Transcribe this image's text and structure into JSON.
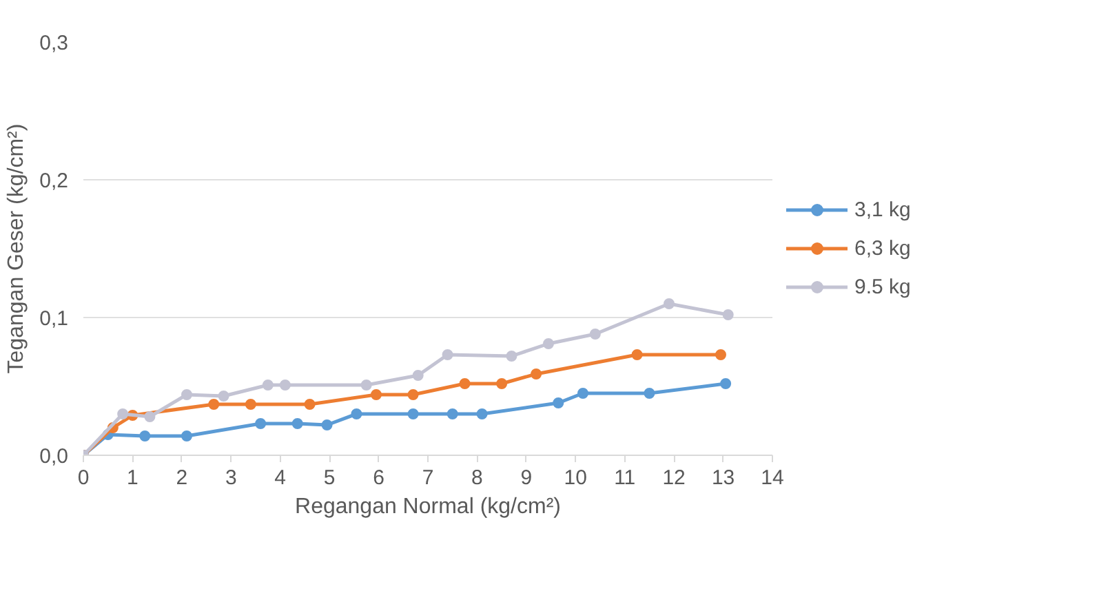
{
  "chart_data": {
    "type": "line",
    "xlabel": "Regangan Normal (kg/cm²)",
    "ylabel": "Tegangan Geser (kg/cm²)",
    "xlim": [
      0,
      14
    ],
    "xticks": [
      0,
      1,
      2,
      3,
      4,
      5,
      6,
      7,
      8,
      9,
      10,
      11,
      12,
      13,
      14
    ],
    "ylim": [
      0,
      0.3
    ],
    "yticks": [
      {
        "value": 0,
        "label": "0,0"
      },
      {
        "value": 0.1,
        "label": "0,1"
      },
      {
        "value": 0.2,
        "label": "0,2"
      },
      {
        "value": 0.3,
        "label": "0,3"
      }
    ],
    "grid": "y",
    "legend": "right",
    "marker": "circle",
    "line_style": "solid",
    "series": [
      {
        "name": "3,1 kg",
        "color": "#5b9bd5",
        "x": [
          0,
          0.5,
          1.25,
          2.1,
          3.6,
          4.35,
          4.95,
          5.55,
          6.7,
          7.5,
          8.1,
          9.65,
          10.15,
          11.5,
          13.05
        ],
        "values": [
          0,
          0.015,
          0.014,
          0.014,
          0.023,
          0.023,
          0.022,
          0.03,
          0.03,
          0.03,
          0.03,
          0.038,
          0.045,
          0.045,
          0.052
        ]
      },
      {
        "name": "6,3 kg",
        "color": "#ed7d31",
        "x": [
          0,
          0.6,
          1.0,
          2.65,
          3.4,
          4.6,
          5.95,
          6.7,
          7.75,
          8.5,
          9.2,
          11.25,
          12.95
        ],
        "values": [
          0,
          0.02,
          0.029,
          0.037,
          0.037,
          0.037,
          0.044,
          0.044,
          0.052,
          0.052,
          0.059,
          0.073,
          0.073
        ]
      },
      {
        "name": "9.5 kg",
        "color": "#c3c3d3",
        "x": [
          0,
          0.8,
          1.35,
          2.1,
          2.85,
          3.75,
          4.1,
          5.75,
          6.8,
          7.4,
          8.7,
          9.45,
          10.4,
          11.9,
          13.1
        ],
        "values": [
          0,
          0.03,
          0.028,
          0.044,
          0.043,
          0.051,
          0.051,
          0.051,
          0.058,
          0.073,
          0.072,
          0.081,
          0.088,
          0.11,
          0.102
        ]
      }
    ]
  }
}
